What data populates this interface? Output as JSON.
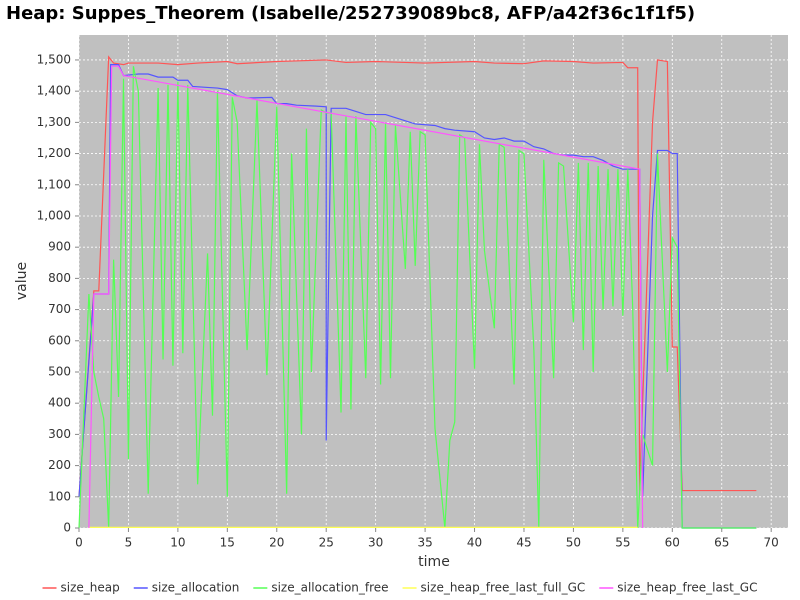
{
  "chart_data": {
    "type": "line",
    "title": "Heap: Suppes_Theorem (Isabelle/252739089bc8, AFP/a42f36c1f1f5)",
    "x_label": "time",
    "y_label": "value",
    "xlim": [
      0,
      71.7
    ],
    "ylim": [
      0,
      1580
    ],
    "xticks": [
      0,
      5,
      10,
      15,
      20,
      25,
      30,
      35,
      40,
      45,
      50,
      55,
      60,
      65,
      70
    ],
    "yticks": [
      0,
      100,
      200,
      300,
      400,
      500,
      600,
      700,
      800,
      900,
      {
        "value": 1000,
        "label": "1,000"
      },
      {
        "value": 1100,
        "label": "1,100"
      },
      {
        "value": 1200,
        "label": "1,200"
      },
      {
        "value": 1300,
        "label": "1,300"
      },
      {
        "value": 1400,
        "label": "1,400"
      },
      {
        "value": 1500,
        "label": "1,500"
      }
    ],
    "grid": true,
    "legend": "bottom",
    "series": [
      {
        "name": "size_heap",
        "color": "#ff5555",
        "x": [
          0,
          1.5,
          2,
          3,
          3.5,
          4.5,
          5,
          8,
          10,
          12,
          15,
          16,
          20,
          25,
          27,
          30,
          35,
          40,
          42,
          45,
          47,
          50,
          52,
          55,
          55.5,
          56.5,
          56.7,
          57,
          58,
          58.5,
          59.5,
          60,
          60.5,
          61,
          68.5
        ],
        "values": [
          100,
          760,
          760,
          1510,
          1490,
          1485,
          1490,
          1490,
          1485,
          1490,
          1495,
          1488,
          1495,
          1500,
          1492,
          1495,
          1490,
          1495,
          1490,
          1488,
          1497,
          1495,
          1490,
          1492,
          1475,
          1475,
          120,
          400,
          1300,
          1500,
          1495,
          580,
          580,
          120,
          120
        ]
      },
      {
        "name": "size_allocation",
        "color": "#5555ff",
        "x": [
          0,
          1.5,
          3,
          3.2,
          4,
          4.5,
          6,
          7,
          8,
          9.5,
          10,
          11,
          11.5,
          13,
          14,
          15,
          16,
          17,
          19.5,
          20,
          21,
          22,
          24,
          25,
          25,
          25.5,
          27,
          28,
          29,
          31,
          32,
          33,
          34,
          36,
          37,
          38,
          40,
          41,
          42,
          43,
          44,
          45,
          46,
          47,
          48,
          49,
          50,
          51,
          52,
          53,
          54,
          55,
          56,
          56.7,
          57,
          58,
          58.5,
          59.5,
          60,
          60.5,
          61,
          68.5
        ],
        "values": [
          100,
          750,
          750,
          1485,
          1485,
          1450,
          1455,
          1455,
          1445,
          1445,
          1435,
          1435,
          1415,
          1412,
          1410,
          1405,
          1385,
          1378,
          1380,
          1360,
          1360,
          1355,
          1352,
          1350,
          280,
          1345,
          1345,
          1335,
          1325,
          1325,
          1315,
          1305,
          1295,
          1290,
          1280,
          1275,
          1270,
          1250,
          1245,
          1250,
          1240,
          1240,
          1222,
          1215,
          1200,
          1195,
          1195,
          1190,
          1190,
          1178,
          1160,
          1150,
          1150,
          1150,
          100,
          1000,
          1210,
          1210,
          1200,
          1200,
          0,
          0
        ]
      },
      {
        "name": "size_allocation_free",
        "color": "#55ff55",
        "x": [
          0,
          1,
          1.5,
          2,
          2.5,
          3,
          3.5,
          4,
          4.5,
          5,
          5.5,
          6,
          7,
          8,
          8.5,
          9,
          9.5,
          10,
          10.5,
          11,
          12,
          13,
          13.5,
          14,
          15,
          15.5,
          16,
          17,
          18,
          19,
          20,
          21,
          21.5,
          22.5,
          23,
          23.5,
          24.5,
          25,
          25.5,
          26.5,
          27,
          27.5,
          28,
          29,
          29.5,
          30,
          30.5,
          31,
          31.5,
          32,
          33,
          33.5,
          34,
          34.5,
          35,
          36,
          37,
          37.5,
          38,
          38.5,
          39,
          40,
          40.5,
          41,
          42,
          42.5,
          43,
          44,
          44.5,
          45,
          46,
          46.5,
          47,
          48,
          48.5,
          49,
          50,
          50.5,
          51,
          51.5,
          52,
          52.5,
          53,
          53.5,
          54,
          54.5,
          55,
          55.5,
          56,
          56.5,
          57,
          58,
          58.5,
          59.5,
          60,
          60.5,
          61,
          68.5
        ],
        "values": [
          0,
          750,
          500,
          420,
          350,
          0,
          860,
          420,
          1440,
          220,
          1480,
          1400,
          110,
          1410,
          540,
          1420,
          520,
          1430,
          560,
          1420,
          140,
          880,
          360,
          1400,
          100,
          1380,
          1300,
          570,
          1370,
          490,
          1350,
          110,
          1200,
          300,
          1280,
          500,
          1340,
          1330,
          1330,
          370,
          1320,
          380,
          1320,
          480,
          1300,
          1280,
          460,
          1300,
          480,
          1290,
          830,
          1270,
          840,
          1270,
          1260,
          320,
          0,
          280,
          340,
          1260,
          1250,
          510,
          1230,
          890,
          640,
          1230,
          1220,
          460,
          1210,
          1200,
          570,
          0,
          1180,
          480,
          1170,
          1160,
          660,
          1170,
          570,
          1170,
          500,
          1160,
          700,
          1150,
          710,
          1150,
          680,
          1150,
          700,
          0,
          300,
          200,
          1200,
          500,
          930,
          900,
          0,
          0
        ]
      },
      {
        "name": "size_heap_free_last_full_GC",
        "color": "#ffff55",
        "x": [
          1,
          56.5
        ],
        "values": [
          2,
          2
        ]
      },
      {
        "name": "size_heap_free_last_GC",
        "color": "#ff55ff",
        "x": [
          1,
          1.5,
          3,
          3.3,
          4,
          4.5,
          56.7,
          57
        ],
        "values": [
          0,
          750,
          750,
          1480,
          1480,
          1450,
          1150,
          0
        ]
      }
    ]
  }
}
